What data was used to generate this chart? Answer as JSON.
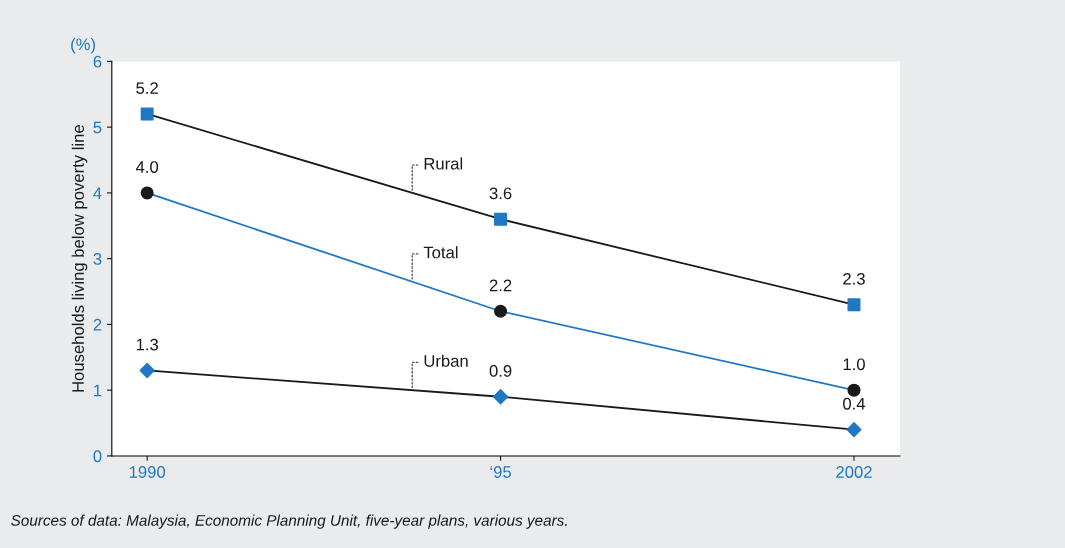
{
  "chart_data": {
    "type": "line",
    "ylabel": "Households living below poverty line",
    "categories": [
      "1990",
      "‘95",
      "2002"
    ],
    "series": [
      {
        "name": "Rural",
        "color": "#1a1a1a",
        "colors": [
          "#1f78c1",
          "#1f78c1",
          "#1f78c1"
        ],
        "marker": "square",
        "values": [
          5.2,
          3.6,
          2.3
        ],
        "value_labels": [
          "5.2",
          "3.6",
          "2.3"
        ]
      },
      {
        "name": "Total",
        "color": "#1f78c1",
        "colors": [
          "#1a1a1a",
          "#1a1a1a",
          "#1a1a1a"
        ],
        "marker": "circle",
        "values": [
          4.0,
          2.2,
          1.0
        ],
        "value_labels": [
          "4.0",
          "2.2",
          "1.0"
        ]
      },
      {
        "name": "Urban",
        "color": "#1a1a1a",
        "colors": [
          "#1f78c1",
          "#1f78c1",
          "#1f78c1"
        ],
        "marker": "diamond",
        "values": [
          1.3,
          0.9,
          0.4
        ],
        "value_labels": [
          "1.3",
          "0.9",
          "0.4"
        ]
      }
    ],
    "ylim": [
      0,
      6
    ],
    "yticks": [
      0,
      1,
      2,
      3,
      4,
      5,
      6
    ],
    "grid": false,
    "legend": false,
    "line_style": "solid",
    "annotations": [
      "(%)",
      "Sources of data: Malaysia, Economic Planning Unit, five-year plans, various years."
    ]
  }
}
